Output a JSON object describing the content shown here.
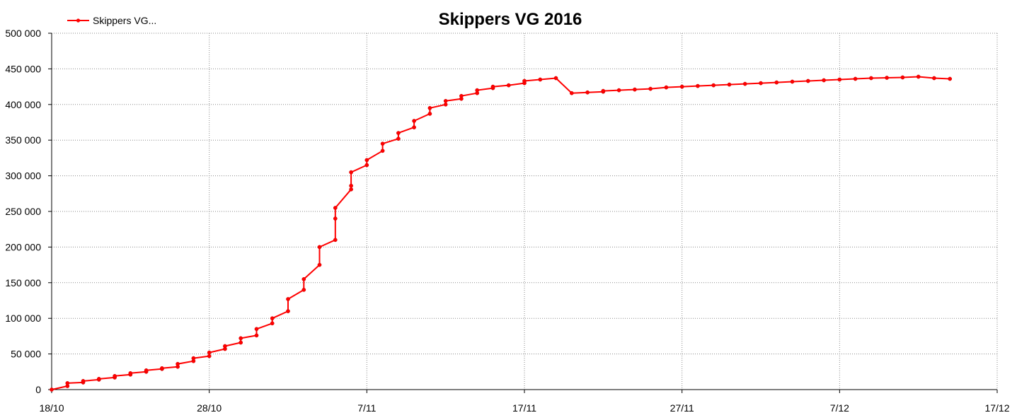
{
  "chart_data": {
    "type": "line",
    "title": "Skippers VG 2016",
    "xlabel": "",
    "ylabel": "",
    "x_ticks": [
      "18/10",
      "28/10",
      "7/11",
      "17/11",
      "27/11",
      "7/12",
      "17/12"
    ],
    "y_ticks": [
      "0",
      "50 000",
      "100 000",
      "150 000",
      "200 000",
      "250 000",
      "300 000",
      "350 000",
      "400 000",
      "450 000",
      "500 000"
    ],
    "xlim": [
      "18/10",
      "17/12"
    ],
    "ylim": [
      0,
      500000
    ],
    "grid": "dotted, both axes",
    "legend": "top-left",
    "series_color": "#ff0000",
    "series": [
      {
        "name": "Skippers VG...",
        "x": [
          "18/10",
          "19/10",
          "19/10",
          "20/10",
          "20/10",
          "21/10",
          "21/10",
          "22/10",
          "22/10",
          "23/10",
          "23/10",
          "24/10",
          "24/10",
          "25/10",
          "25/10",
          "26/10",
          "26/10",
          "27/10",
          "27/10",
          "28/10",
          "28/10",
          "29/10",
          "29/10",
          "30/10",
          "30/10",
          "31/10",
          "31/10",
          "1/11",
          "1/11",
          "2/11",
          "2/11",
          "3/11",
          "3/11",
          "4/11",
          "4/11",
          "5/11",
          "5/11",
          "5/11",
          "6/11",
          "6/11",
          "6/11",
          "7/11",
          "7/11",
          "8/11",
          "8/11",
          "9/11",
          "9/11",
          "10/11",
          "10/11",
          "11/11",
          "11/11",
          "12/11",
          "12/11",
          "13/11",
          "13/11",
          "14/11",
          "14/11",
          "15/11",
          "15/11",
          "16/11",
          "17/11",
          "17/11",
          "18/11",
          "19/11",
          "20/11",
          "21/11",
          "22/11",
          "22/11",
          "23/11",
          "24/11",
          "25/11",
          "26/11",
          "27/11",
          "28/11",
          "29/11",
          "30/11",
          "1/12",
          "2/12",
          "3/12",
          "4/12",
          "5/12",
          "6/12",
          "7/12",
          "8/12",
          "9/12",
          "10/12",
          "11/12",
          "12/12",
          "13/12",
          "14/12"
        ],
        "values": [
          0,
          5000,
          9000,
          10000,
          12000,
          14000,
          15000,
          17000,
          19000,
          21000,
          23000,
          25000,
          27000,
          29000,
          30000,
          32000,
          36000,
          40000,
          44000,
          47000,
          52000,
          57000,
          61000,
          66000,
          72000,
          76000,
          85000,
          93000,
          100000,
          110000,
          127000,
          140000,
          155000,
          175000,
          200000,
          210000,
          240000,
          255000,
          281000,
          286000,
          305000,
          315000,
          322000,
          335000,
          345000,
          352000,
          360000,
          368000,
          377000,
          387000,
          395000,
          400000,
          405000,
          408000,
          412000,
          416000,
          420000,
          423000,
          425000,
          427000,
          430000,
          433000,
          435000,
          437000,
          416000,
          417000,
          418000,
          419000,
          420000,
          421000,
          422000,
          424000,
          425000,
          426000,
          427000,
          428000,
          429000,
          430000,
          431000,
          432000,
          433000,
          434000,
          435000,
          436000,
          437000,
          437500,
          438000,
          439000,
          437000,
          436000
        ]
      }
    ]
  }
}
